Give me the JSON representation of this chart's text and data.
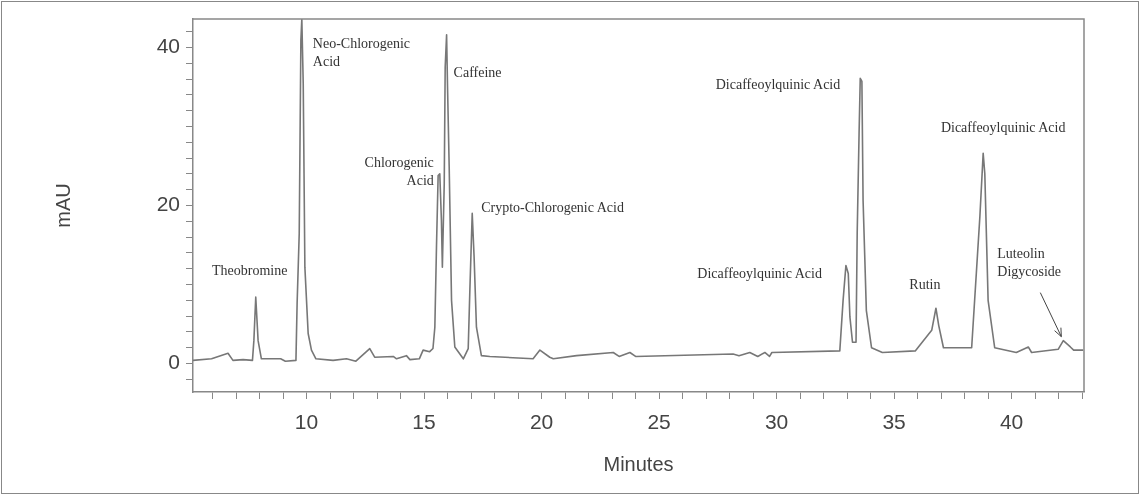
{
  "chart_data": {
    "type": "line",
    "xlabel": "Minutes",
    "ylabel": "mAU",
    "color": "#777777",
    "marker": "none",
    "grid": false,
    "x": [
      5.17,
      5.96,
      6.66,
      6.87,
      7.3,
      7.7,
      7.76,
      7.84,
      7.94,
      8.08,
      8.9,
      9.1,
      9.55,
      9.6,
      9.69,
      9.76,
      9.8,
      9.86,
      9.93,
      10.07,
      10.21,
      10.4,
      11.13,
      11.7,
      12.1,
      12.69,
      12.9,
      13.69,
      13.83,
      14.25,
      14.4,
      14.8,
      14.96,
      15.24,
      15.38,
      15.46,
      15.53,
      15.6,
      15.67,
      15.74,
      15.78,
      15.86,
      15.9,
      15.96,
      16.0,
      16.07,
      16.17,
      16.31,
      16.67,
      16.88,
      16.95,
      17.05,
      17.13,
      17.23,
      17.44,
      17.8,
      19.64,
      19.93,
      20.35,
      20.5,
      21.49,
      23.05,
      23.3,
      23.76,
      24.0,
      28.15,
      28.4,
      28.86,
      29.2,
      29.5,
      29.7,
      29.8,
      32.69,
      32.83,
      32.95,
      33.05,
      33.12,
      33.23,
      33.38,
      33.43,
      33.51,
      33.56,
      33.63,
      33.68,
      33.82,
      34.04,
      34.5,
      35.9,
      36.6,
      36.78,
      36.9,
      37.1,
      38.3,
      38.65,
      38.79,
      38.86,
      39.0,
      39.28,
      40.2,
      40.71,
      40.85,
      41.98,
      42.2,
      42.5,
      42.64,
      43.05
    ],
    "values": [
      0.4,
      0.6,
      1.3,
      0.4,
      0.5,
      0.4,
      2.9,
      8.4,
      2.9,
      0.6,
      0.6,
      0.3,
      0.4,
      7.6,
      16.5,
      40.9,
      43.6,
      35.4,
      12.2,
      3.8,
      1.7,
      0.6,
      0.4,
      0.6,
      0.3,
      1.9,
      0.8,
      0.9,
      0.6,
      1.0,
      0.5,
      0.6,
      1.7,
      1.5,
      1.9,
      4.6,
      14.8,
      23.8,
      24.0,
      18.1,
      12.2,
      22.8,
      37.5,
      41.6,
      35.0,
      24.9,
      8.0,
      2.1,
      0.6,
      1.9,
      9.3,
      19.0,
      13.5,
      4.6,
      1.0,
      0.9,
      0.6,
      1.7,
      0.8,
      0.6,
      1.0,
      1.4,
      0.9,
      1.4,
      0.9,
      1.2,
      1.0,
      1.4,
      0.9,
      1.4,
      0.9,
      1.4,
      1.6,
      8.0,
      12.4,
      11.4,
      5.9,
      2.7,
      2.7,
      16.5,
      29.1,
      36.1,
      35.7,
      20.7,
      6.7,
      2.0,
      1.4,
      1.6,
      4.2,
      7.0,
      4.8,
      2.0,
      2.0,
      18.6,
      26.6,
      24.0,
      8.0,
      2.0,
      1.4,
      2.1,
      1.4,
      1.8,
      2.9,
      2.1,
      1.7,
      1.7
    ],
    "xlim": [
      5.17,
      43.08
    ],
    "ylim": [
      -3.6,
      43.6
    ],
    "xticks": [
      {
        "value": 6,
        "label": null
      },
      {
        "value": 7,
        "label": null
      },
      {
        "value": 8,
        "label": null
      },
      {
        "value": 9,
        "label": null
      },
      10,
      {
        "value": 11,
        "label": null
      },
      {
        "value": 12,
        "label": null
      },
      {
        "value": 13,
        "label": null
      },
      {
        "value": 14,
        "label": null
      },
      15,
      {
        "value": 16,
        "label": null
      },
      {
        "value": 17,
        "label": null
      },
      {
        "value": 18,
        "label": null
      },
      {
        "value": 19,
        "label": null
      },
      20,
      {
        "value": 21,
        "label": null
      },
      {
        "value": 22,
        "label": null
      },
      {
        "value": 23,
        "label": null
      },
      {
        "value": 24,
        "label": null
      },
      25,
      {
        "value": 26,
        "label": null
      },
      {
        "value": 27,
        "label": null
      },
      {
        "value": 28,
        "label": null
      },
      {
        "value": 29,
        "label": null
      },
      30,
      {
        "value": 31,
        "label": null
      },
      {
        "value": 32,
        "label": null
      },
      {
        "value": 33,
        "label": null
      },
      {
        "value": 34,
        "label": null
      },
      35,
      {
        "value": 36,
        "label": null
      },
      {
        "value": 37,
        "label": null
      },
      {
        "value": 38,
        "label": null
      },
      {
        "value": 39,
        "label": null
      },
      40,
      {
        "value": 41,
        "label": null
      },
      {
        "value": 42,
        "label": null
      },
      {
        "value": 43,
        "label": null
      }
    ],
    "yticks": [
      {
        "value": -2,
        "label": null
      },
      0,
      {
        "value": 2,
        "label": null
      },
      {
        "value": 4,
        "label": null
      },
      {
        "value": 6,
        "label": null
      },
      {
        "value": 8,
        "label": null
      },
      {
        "value": 10,
        "label": null
      },
      {
        "value": 12,
        "label": null
      },
      {
        "value": 14,
        "label": null
      },
      {
        "value": 16,
        "label": null
      },
      {
        "value": 18,
        "label": null
      },
      20,
      {
        "value": 22,
        "label": null
      },
      {
        "value": 24,
        "label": null
      },
      {
        "value": 26,
        "label": null
      },
      {
        "value": 28,
        "label": null
      },
      {
        "value": 30,
        "label": null
      },
      {
        "value": 32,
        "label": null
      },
      {
        "value": 34,
        "label": null
      },
      {
        "value": 36,
        "label": null
      },
      {
        "value": 38,
        "label": null
      },
      40,
      {
        "value": 42,
        "label": null
      }
    ],
    "annotations": [
      {
        "text": "Theobromine",
        "x": 7.84,
        "y": 8.4
      },
      {
        "text": "Neo-Chlorogenic\nAcid",
        "x": 9.8,
        "y": 43.6
      },
      {
        "text": "Chlorogenic\nAcid",
        "x": 15.67,
        "y": 24.0
      },
      {
        "text": "Caffeine",
        "x": 15.96,
        "y": 41.6
      },
      {
        "text": "Crypto-Chlorogenic Acid",
        "x": 17.05,
        "y": 19.0
      },
      {
        "text": "Dicaffeoylquinic Acid",
        "x": 32.95,
        "y": 12.4
      },
      {
        "text": "Dicaffeoylquinic Acid",
        "x": 33.56,
        "y": 36.1
      },
      {
        "text": "Dicaffeoylquinic Acid",
        "x": 38.79,
        "y": 26.6
      },
      {
        "text": "Rutin",
        "x": 36.78,
        "y": 7.0
      },
      {
        "text": "Luteolin\nDigycoside",
        "x": 42.2,
        "y": 2.9
      }
    ]
  }
}
